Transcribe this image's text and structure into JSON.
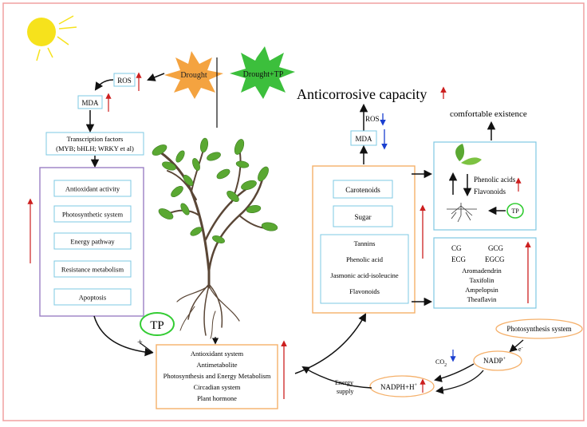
{
  "stress": {
    "drought": "Drought",
    "drought_tp": "Drought+TP"
  },
  "left": {
    "ros": "ROS",
    "mda": "MDA",
    "tf_line1": "Transcription factors",
    "tf_line2": "(MYB; bHLH; WRKY et al)",
    "items": [
      "Antioxidant activity",
      "Photosynthetic system",
      "Energy pathway",
      "Resistance metabolism",
      "Apoptosis"
    ]
  },
  "tp_label": "TP",
  "plus": "+",
  "bottom_center": [
    "Antioxidant system",
    "Antimetabolite",
    "Photosynthesis and Energy Metabolism",
    "Circadian system",
    "Plant hormone"
  ],
  "right": {
    "anticorrosive": "Anticorrosive capacity",
    "ros": "ROS",
    "mda": "MDA",
    "comfortable": "comfortable existence",
    "carotenoids": "Carotenoids",
    "sugar": "Sugar",
    "group": [
      "Tannins",
      "Phenolic acid",
      "Jasmonic acid-isoleucine",
      "Flavonoids"
    ],
    "phenolic_acids": "Phenolic acids",
    "flavonoids": "Flavonoids",
    "tp_small": "TP",
    "catechins": {
      "row1": [
        "CG",
        "GCG"
      ],
      "row2": [
        "ECG",
        "EGCG"
      ],
      "list": [
        "Aromadendrin",
        "Taxifolin",
        "Ampelopsin",
        "Theaflavin"
      ]
    }
  },
  "cycle": {
    "photosynthesis": "Photosynthesis system",
    "nadp": "NADP",
    "nadp_sup": "+",
    "nadph": "NADPH+H",
    "nadph_sup": "+",
    "co2": "CO",
    "co2_sub": "2",
    "e": "e",
    "e_sup": "-",
    "energy1": "Energy",
    "energy2": "supply"
  },
  "colors": {
    "red": "#cc1f1f",
    "blue": "#1a3fd0",
    "box_blue": "#7ec8e3",
    "box_purple": "#9b7fc4",
    "box_orange": "#f5b06a",
    "tp_green": "#33cc33",
    "star_orange": "#f4a340",
    "star_green": "#3cbf3c",
    "sun": "#f6e21c"
  }
}
